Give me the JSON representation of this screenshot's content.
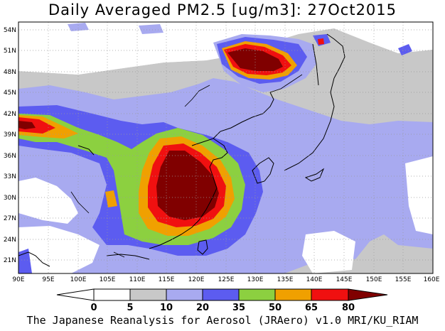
{
  "title": "Daily Averaged PM2.5 [ug/m3]: 27Oct2015",
  "footer": "The Japanese Reanalysis for Aerosol (JRAero) v1.0 MRI/KU_RIAM",
  "lat_labels": [
    "54N",
    "51N",
    "48N",
    "45N",
    "42N",
    "39N",
    "36N",
    "33N",
    "30N",
    "27N",
    "24N",
    "21N"
  ],
  "lon_labels": [
    "90E",
    "95E",
    "100E",
    "105E",
    "110E",
    "115E",
    "120E",
    "125E",
    "130E",
    "135E",
    "140E",
    "145E",
    "150E",
    "155E",
    "160E"
  ],
  "colorbar": {
    "labels": [
      "0",
      "5",
      "10",
      "20",
      "35",
      "50",
      "65",
      "80"
    ],
    "colors": [
      "#ffffff",
      "#c8c8c8",
      "#a8aaf0",
      "#5c5cf0",
      "#8cd040",
      "#f0a000",
      "#f01010",
      "#800000"
    ]
  }
}
